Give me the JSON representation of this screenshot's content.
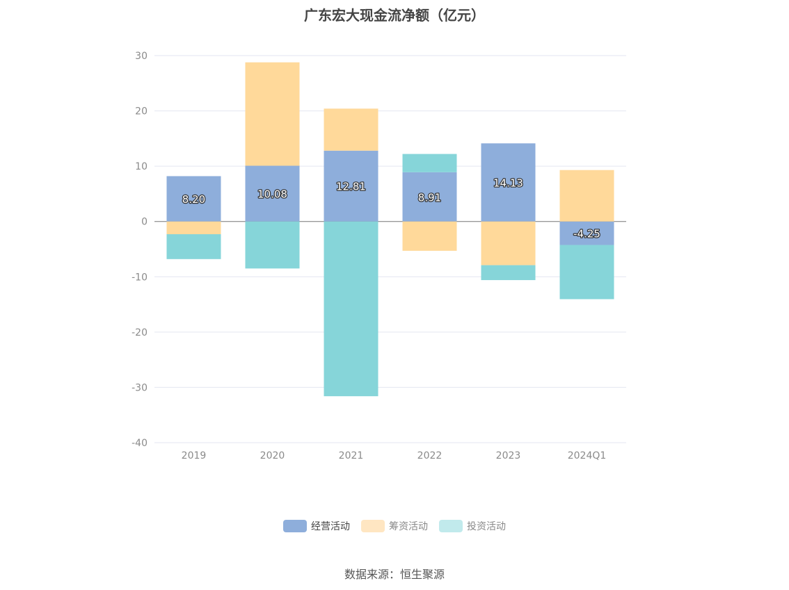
{
  "chart_data": {
    "type": "bar",
    "stacked": true,
    "title": "广东宏大现金流净额（亿元）",
    "categories": [
      "2019",
      "2020",
      "2021",
      "2022",
      "2023",
      "2024Q1"
    ],
    "ylim": [
      -40,
      30
    ],
    "yticks": [
      30,
      20,
      10,
      0,
      -10,
      -20,
      -30,
      -40
    ],
    "grid": true,
    "legend_position": "bottom",
    "series": [
      {
        "name": "经营活动",
        "color": "#8eaedb",
        "values": [
          8.2,
          10.08,
          12.81,
          8.91,
          14.13,
          -4.25
        ],
        "labels": [
          "8.20",
          "10.08",
          "12.81",
          "8.91",
          "14.13",
          "-4.25"
        ]
      },
      {
        "name": "筹资活动",
        "color": "#ffd99a",
        "values": [
          -2.3,
          18.7,
          7.6,
          -5.3,
          -7.9,
          9.3
        ]
      },
      {
        "name": "投资活动",
        "color": "#86d5d9",
        "values": [
          -4.5,
          -8.5,
          -31.6,
          3.3,
          -2.7,
          -9.8
        ]
      }
    ],
    "legend_colors": [
      "#8eaedb",
      "#ffe6c2",
      "#c1eaec"
    ]
  },
  "source": "数据来源：恒生聚源"
}
